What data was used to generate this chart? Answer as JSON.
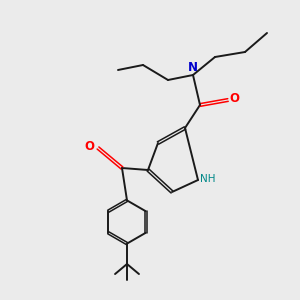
{
  "bg_color": "#ebebeb",
  "bond_color": "#1a1a1a",
  "N_color": "#0000cc",
  "O_color": "#ff0000",
  "NH_color": "#008888",
  "figsize": [
    3.0,
    3.0
  ],
  "dpi": 100,
  "xlim": [
    0,
    10
  ],
  "ylim": [
    0,
    10
  ]
}
